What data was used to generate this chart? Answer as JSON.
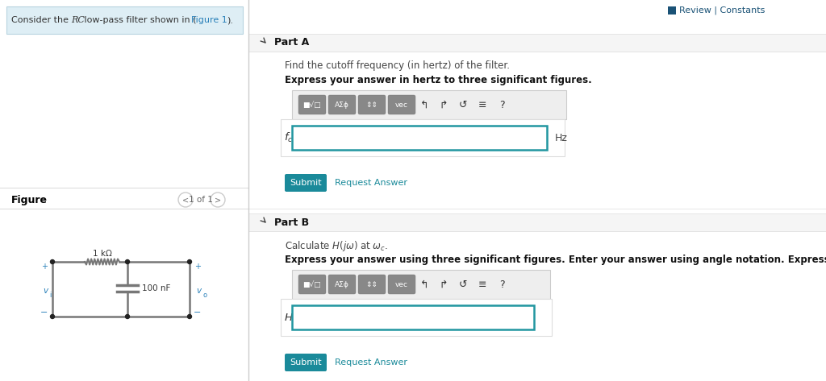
{
  "bg_color": "#ffffff",
  "left_panel_bg": "#deeef5",
  "left_panel_border": "#b8d4e0",
  "panel_header_bg": "#f0f0f0",
  "section_divider": "#dddddd",
  "header_square_color": "#1a5276",
  "submit_bg": "#1a8a9a",
  "submit_text_color": "#ffffff",
  "request_answer_color": "#1a8a9a",
  "input_border": "#2196a0",
  "toolbar_btn_bg": "#888888",
  "nav_circle_color": "#cccccc",
  "circuit_line_color": "#777777",
  "circuit_dot_color": "#222222",
  "link_color": "#2980b9",
  "text_dark": "#333333",
  "text_black": "#111111",
  "part_a_text1": "Find the cutoff frequency (in hertz) of the filter.",
  "part_a_text2": "Express your answer in hertz to three significant figures.",
  "part_b_text2": "Express your answer using three significant figures. Enter your answer using angle notation. Express argument in degrees.",
  "circuit_R_label": "1 kΩ",
  "circuit_C_label": "100 nF"
}
